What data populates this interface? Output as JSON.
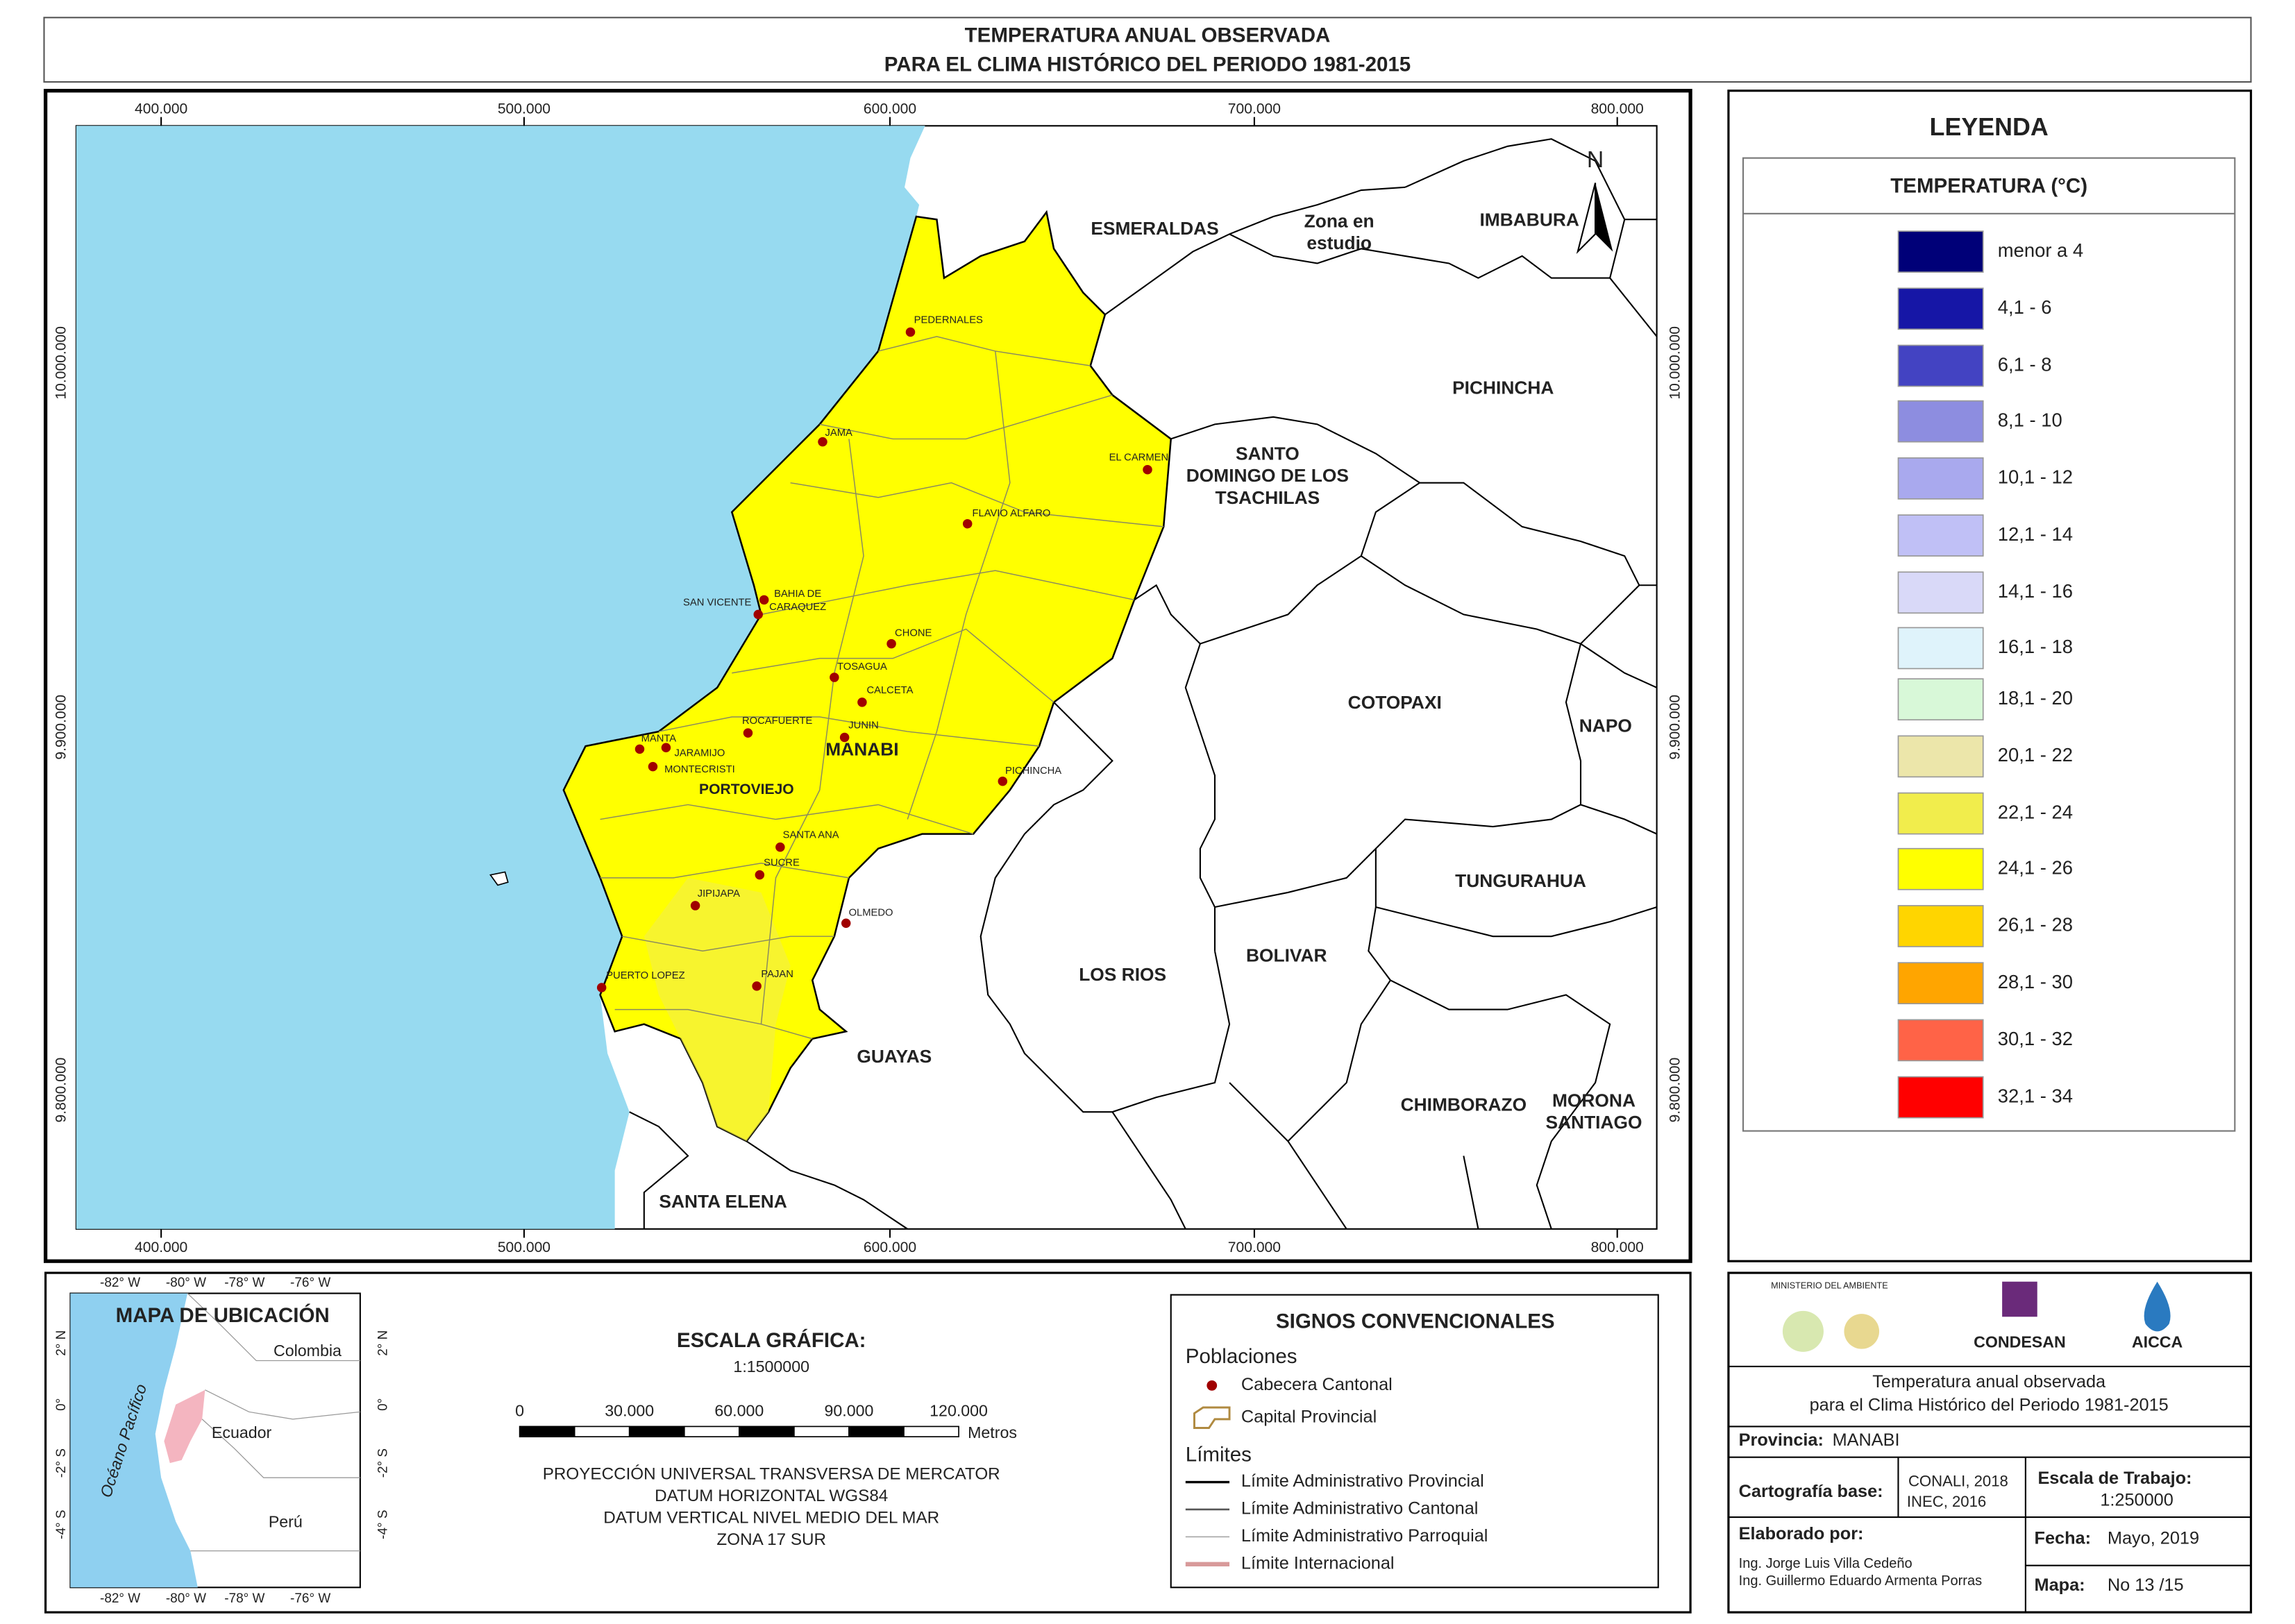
{
  "header": {
    "title": [
      "TEMPERATURA ANUAL OBSERVADA",
      "PARA EL CLIMA HISTÓRICO DEL PERIODO 1981-2015"
    ]
  },
  "map": {
    "colors": {
      "ocean": "#97daf0",
      "study_area": "#ffff00"
    },
    "grid_x": [
      "400.000",
      "500.000",
      "600.000",
      "700.000",
      "800.000"
    ],
    "grid_y": [
      "10.000.000",
      "9.900.000",
      "9.800.000"
    ],
    "north": "N",
    "provinces": [
      {
        "lines": [
          "ESMERALDAS"
        ]
      },
      {
        "lines": [
          "Zona en",
          "estudio"
        ]
      },
      {
        "lines": [
          "IMBABURA"
        ]
      },
      {
        "lines": [
          "PICHINCHA"
        ]
      },
      {
        "lines": [
          "SANTO",
          "DOMINGO DE LOS",
          "TSACHILAS"
        ]
      },
      {
        "lines": [
          "COTOPAXI"
        ]
      },
      {
        "lines": [
          "NAPO"
        ]
      },
      {
        "lines": [
          "TUNGURAHUA"
        ]
      },
      {
        "lines": [
          "BOLIVAR"
        ]
      },
      {
        "lines": [
          "LOS RIOS"
        ]
      },
      {
        "lines": [
          "GUAYAS"
        ]
      },
      {
        "lines": [
          "CHIMBORAZO"
        ]
      },
      {
        "lines": [
          "MORONA",
          "SANTIAGO"
        ]
      },
      {
        "lines": [
          "SANTA ELENA"
        ]
      }
    ],
    "study_province": "MANABI",
    "capital": "PORTOVIEJO",
    "towns": [
      {
        "lines": [
          "PEDERNALES"
        ]
      },
      {
        "lines": [
          "JAMA"
        ]
      },
      {
        "lines": [
          "EL CARMEN"
        ]
      },
      {
        "lines": [
          "FLAVIO ALFARO"
        ]
      },
      {
        "lines": [
          "BAHIA DE",
          "CARAQUEZ"
        ]
      },
      {
        "lines": [
          "SAN VICENTE"
        ]
      },
      {
        "lines": [
          "CHONE"
        ]
      },
      {
        "lines": [
          "TOSAGUA"
        ]
      },
      {
        "lines": [
          "CALCETA"
        ]
      },
      {
        "lines": [
          "ROCAFUERTE"
        ]
      },
      {
        "lines": [
          "JUNIN"
        ]
      },
      {
        "lines": [
          "MANTA"
        ]
      },
      {
        "lines": [
          "JARAMIJO"
        ]
      },
      {
        "lines": [
          "MONTECRISTI"
        ]
      },
      {
        "lines": [
          "PICHINCHA"
        ]
      },
      {
        "lines": [
          "SANTA ANA"
        ]
      },
      {
        "lines": [
          "SUCRE"
        ]
      },
      {
        "lines": [
          "JIPIJAPA"
        ]
      },
      {
        "lines": [
          "OLMEDO"
        ]
      },
      {
        "lines": [
          "PUERTO LOPEZ"
        ]
      },
      {
        "lines": [
          "PAJAN"
        ]
      }
    ]
  },
  "legend": {
    "title": "LEYENDA",
    "subtitle": "TEMPERATURA (°C)",
    "classes": [
      {
        "label": "menor a 4",
        "color": "#000078"
      },
      {
        "label": "4,1 - 6",
        "color": "#1616a6"
      },
      {
        "label": "6,1 - 8",
        "color": "#4343c2"
      },
      {
        "label": "8,1 - 10",
        "color": "#8d8de0"
      },
      {
        "label": "10,1 - 12",
        "color": "#a9a9ee"
      },
      {
        "label": "12,1 - 14",
        "color": "#c0c0f6"
      },
      {
        "label": "14,1 - 16",
        "color": "#d9d9f8"
      },
      {
        "label": "16,1 - 18",
        "color": "#dff3fb"
      },
      {
        "label": "18,1 - 20",
        "color": "#d8f8d8"
      },
      {
        "label": "20,1 - 22",
        "color": "#ece6aa"
      },
      {
        "label": "22,1 - 24",
        "color": "#f1ed4c"
      },
      {
        "label": "24,1 - 26",
        "color": "#ffff00"
      },
      {
        "label": "26,1 - 28",
        "color": "#ffd500"
      },
      {
        "label": "28,1 - 30",
        "color": "#ffa500"
      },
      {
        "label": "30,1 - 32",
        "color": "#ff6347"
      },
      {
        "label": "32,1 - 34",
        "color": "#ff0000"
      }
    ]
  },
  "location_map": {
    "title": "MAPA DE UBICACIÓN",
    "lon": [
      "-82° W",
      "-80° W",
      "-78° W",
      "-76° W"
    ],
    "lat": [
      "2° N",
      "0°",
      "-2° S",
      "-4° S"
    ],
    "countries": [
      "Colombia",
      "Ecuador",
      "Perú"
    ],
    "ocean": "Océano Pacífico"
  },
  "scale": {
    "title": "ESCALA GRÁFICA:",
    "ratio": "1:1500000",
    "ticks": [
      "0",
      "30.000",
      "60.000",
      "90.000",
      "120.000"
    ],
    "unit": "Metros",
    "projection": [
      "PROYECCIÓN UNIVERSAL TRANSVERSA DE MERCATOR",
      "DATUM HORIZONTAL WGS84",
      "DATUM VERTICAL NIVEL MEDIO DEL MAR",
      "ZONA 17 SUR"
    ]
  },
  "symbols": {
    "title": "SIGNOS CONVENCIONALES",
    "populations": "Poblaciones",
    "town": "Cabecera Cantonal",
    "capital": "Capital Provincial",
    "limits": "Límites",
    "limit_items": [
      "Límite Administrativo Provincial",
      "Límite Administrativo Cantonal",
      "Límite Administrativo Parroquial",
      "Límite Internacional"
    ]
  },
  "info": {
    "logos": [
      "MINISTERIO DEL AMBIENTE",
      "CONDESAN",
      "AICCA"
    ],
    "description": [
      "Temperatura anual observada",
      "para el Clima Histórico del Periodo 1981-2015"
    ],
    "province_label": "Provincia:",
    "province": "MANABI",
    "cartography_label": "Cartografía base:",
    "cartography": [
      "CONALI, 2018",
      "INEC, 2016"
    ],
    "work_scale_label": "Escala de Trabajo:",
    "work_scale": "1:250000",
    "authors_label": "Elaborado por:",
    "authors": [
      "Ing. Jorge Luis Villa Cedeño",
      "Ing. Guillermo Eduardo Armenta Porras"
    ],
    "date_label": "Fecha:",
    "date": "Mayo, 2019",
    "map_label": "Mapa:",
    "map_number": "No 13 /15"
  }
}
